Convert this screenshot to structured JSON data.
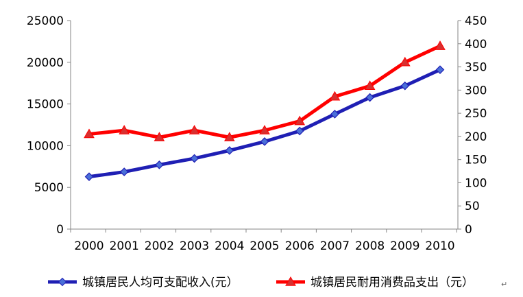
{
  "chart_data": {
    "type": "line",
    "categories": [
      "2000",
      "2001",
      "2002",
      "2003",
      "2004",
      "2005",
      "2006",
      "2007",
      "2008",
      "2009",
      "2010"
    ],
    "series": [
      {
        "name": "城镇居民人均可支配收入(元）",
        "axis": "left",
        "color": "#1f1fb4",
        "marker": "diamond",
        "values": [
          6280,
          6860,
          7703,
          8472,
          9422,
          10493,
          11759,
          13786,
          15781,
          17175,
          19109
        ]
      },
      {
        "name": "城镇居民耐用消费品支出（元）",
        "axis": "right",
        "color": "#ff0000",
        "marker": "triangle",
        "values": [
          205,
          213,
          198,
          213,
          198,
          213,
          233,
          286,
          309,
          360,
          395
        ]
      }
    ],
    "y_left": {
      "min": 0,
      "max": 25000,
      "ticks": [
        "0",
        "5000",
        "10000",
        "15000",
        "20000",
        "25000"
      ]
    },
    "y_right": {
      "min": 0,
      "max": 450,
      "ticks": [
        "0",
        "50",
        "100",
        "150",
        "200",
        "250",
        "300",
        "350",
        "400",
        "450"
      ]
    },
    "grid": false,
    "legend": "bottom"
  },
  "para_mark": "↵"
}
